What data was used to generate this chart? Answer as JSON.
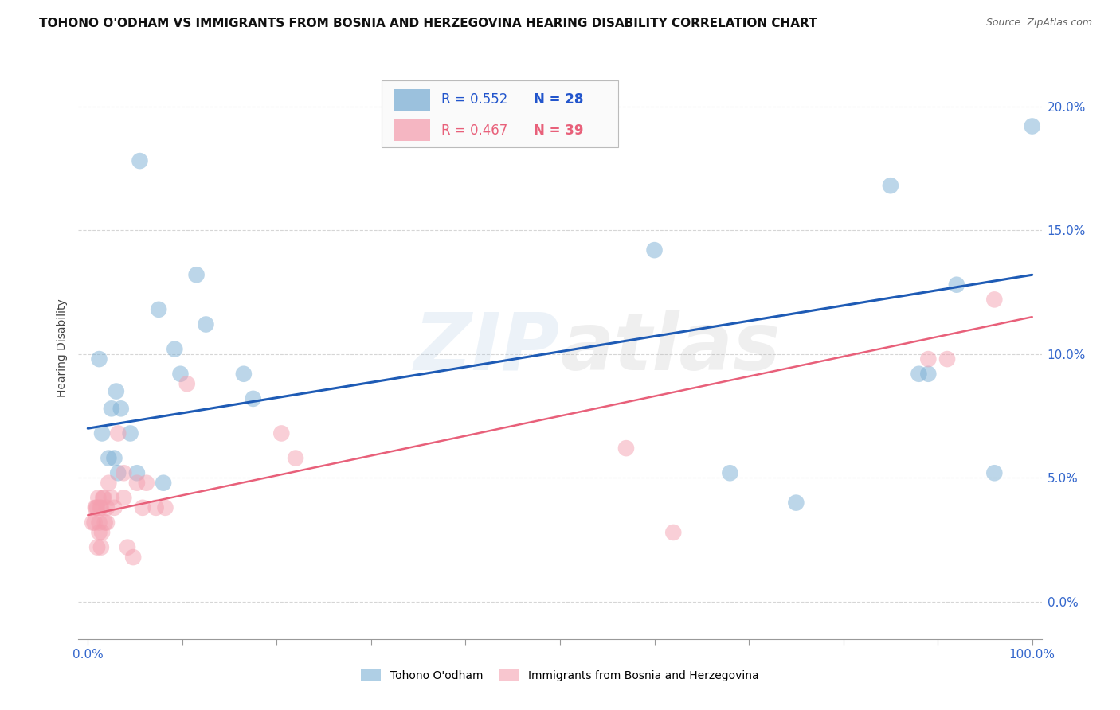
{
  "title": "TOHONO O'ODHAM VS IMMIGRANTS FROM BOSNIA AND HERZEGOVINA HEARING DISABILITY CORRELATION CHART",
  "source": "Source: ZipAtlas.com",
  "ylabel": "Hearing Disability",
  "watermark": "ZIPatlas",
  "legend_blue_R": "R = 0.552",
  "legend_blue_N": "N = 28",
  "legend_pink_R": "R = 0.467",
  "legend_pink_N": "N = 39",
  "legend_blue_label": "Tohono O'odham",
  "legend_pink_label": "Immigrants from Bosnia and Herzegovina",
  "xlim": [
    -1,
    101
  ],
  "ylim": [
    -1.5,
    22
  ],
  "yticks": [
    0,
    5,
    10,
    15,
    20
  ],
  "xticks_major": [
    0,
    10,
    20,
    30,
    40,
    50,
    60,
    70,
    80,
    90,
    100
  ],
  "xtick_labels_show": [
    0,
    100
  ],
  "blue_color": "#7BAFD4",
  "pink_color": "#F4A0B0",
  "blue_line_color": "#1E5BB5",
  "pink_line_color": "#E8607A",
  "blue_scatter": [
    [
      1.5,
      6.8
    ],
    [
      2.5,
      7.8
    ],
    [
      3.5,
      7.8
    ],
    [
      1.2,
      9.8
    ],
    [
      2.2,
      5.8
    ],
    [
      2.8,
      5.8
    ],
    [
      3.2,
      5.2
    ],
    [
      4.5,
      6.8
    ],
    [
      5.2,
      5.2
    ],
    [
      7.5,
      11.8
    ],
    [
      9.2,
      10.2
    ],
    [
      9.8,
      9.2
    ],
    [
      11.5,
      13.2
    ],
    [
      12.5,
      11.2
    ],
    [
      16.5,
      9.2
    ],
    [
      17.5,
      8.2
    ],
    [
      5.5,
      17.8
    ],
    [
      60.0,
      14.2
    ],
    [
      68.0,
      5.2
    ],
    [
      75.0,
      4.0
    ],
    [
      88.0,
      9.2
    ],
    [
      89.0,
      9.2
    ],
    [
      92.0,
      12.8
    ],
    [
      96.0,
      5.2
    ],
    [
      100.0,
      19.2
    ],
    [
      85.0,
      16.8
    ],
    [
      3.0,
      8.5
    ],
    [
      8.0,
      4.8
    ]
  ],
  "pink_scatter": [
    [
      0.5,
      3.2
    ],
    [
      0.7,
      3.2
    ],
    [
      0.8,
      3.8
    ],
    [
      0.9,
      3.8
    ],
    [
      1.0,
      3.8
    ],
    [
      1.1,
      4.2
    ],
    [
      1.2,
      3.2
    ],
    [
      1.3,
      3.8
    ],
    [
      1.4,
      3.8
    ],
    [
      1.5,
      2.8
    ],
    [
      1.6,
      4.2
    ],
    [
      1.7,
      4.2
    ],
    [
      1.8,
      3.2
    ],
    [
      2.0,
      3.2
    ],
    [
      2.0,
      3.8
    ],
    [
      2.2,
      4.8
    ],
    [
      2.5,
      4.2
    ],
    [
      2.8,
      3.8
    ],
    [
      3.2,
      6.8
    ],
    [
      3.8,
      4.2
    ],
    [
      3.8,
      5.2
    ],
    [
      4.2,
      2.2
    ],
    [
      4.8,
      1.8
    ],
    [
      5.2,
      4.8
    ],
    [
      5.8,
      3.8
    ],
    [
      6.2,
      4.8
    ],
    [
      7.2,
      3.8
    ],
    [
      8.2,
      3.8
    ],
    [
      10.5,
      8.8
    ],
    [
      20.5,
      6.8
    ],
    [
      22.0,
      5.8
    ],
    [
      57.0,
      6.2
    ],
    [
      62.0,
      2.8
    ],
    [
      89.0,
      9.8
    ],
    [
      91.0,
      9.8
    ],
    [
      96.0,
      12.2
    ],
    [
      1.0,
      2.2
    ],
    [
      1.2,
      2.8
    ],
    [
      1.4,
      2.2
    ]
  ],
  "blue_line_x": [
    0,
    100
  ],
  "blue_line_y_start": 7.0,
  "blue_line_y_end": 13.2,
  "pink_line_x": [
    0,
    100
  ],
  "pink_line_y_start": 3.5,
  "pink_line_y_end": 11.5,
  "background_color": "#FFFFFF",
  "grid_color": "#CCCCCC",
  "title_fontsize": 11,
  "axis_label_fontsize": 10,
  "tick_fontsize": 11,
  "source_fontsize": 9
}
